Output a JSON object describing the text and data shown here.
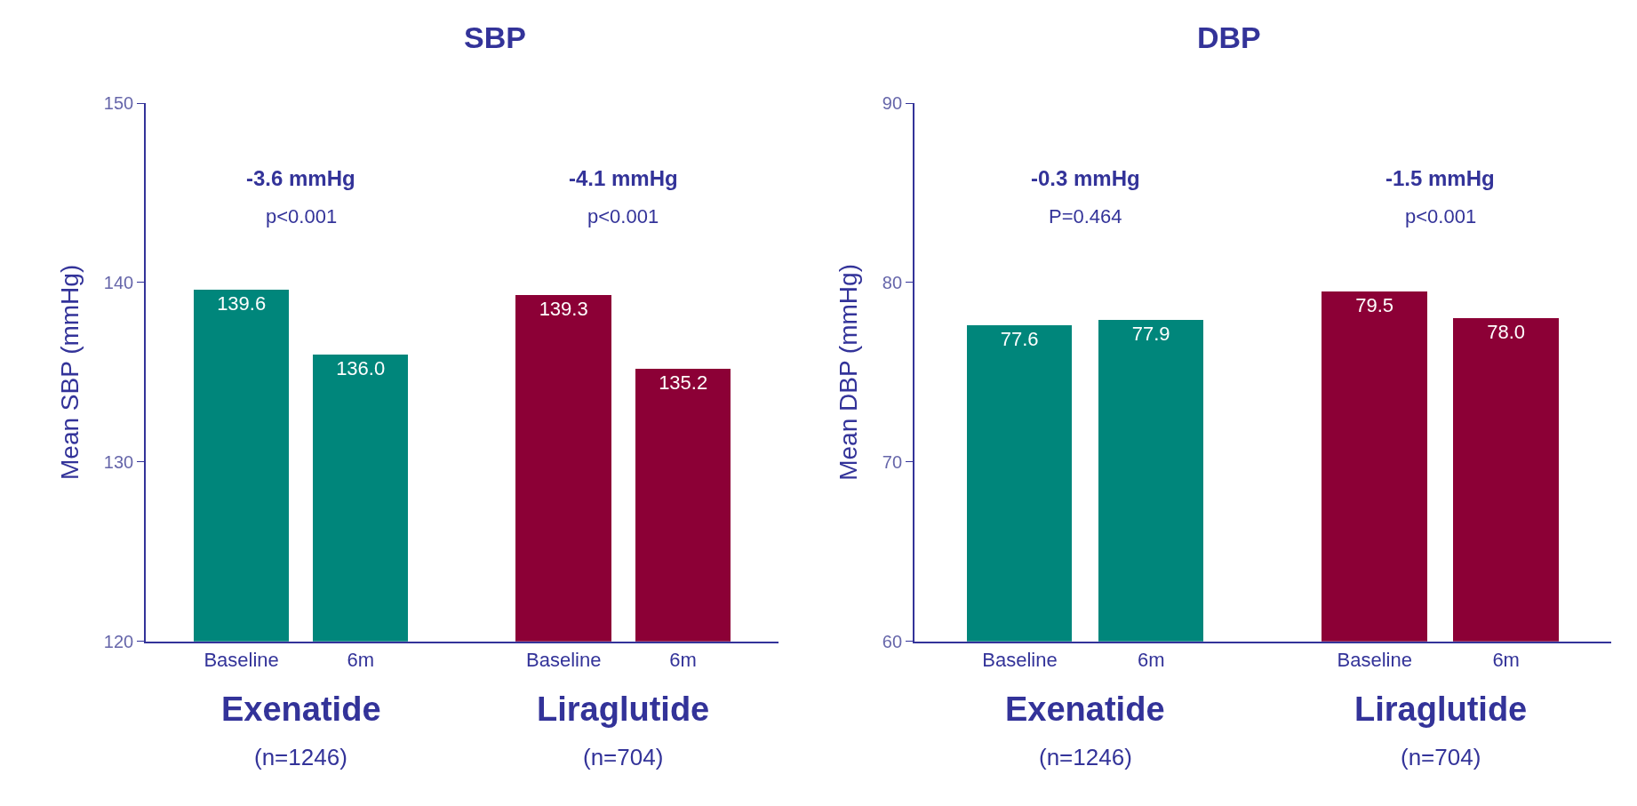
{
  "chart_data": [
    {
      "type": "bar",
      "title": "SBP",
      "ylabel": "Mean SBP (mmHg)",
      "categories": [
        "Baseline",
        "6m",
        "Baseline",
        "6m"
      ],
      "values": [
        139.6,
        136.0,
        139.3,
        135.2
      ],
      "value_labels": [
        "139.6",
        "136.0",
        "139.3",
        "135.2"
      ],
      "colors": [
        "#00867b",
        "#00867b",
        "#8c0036",
        "#8c0036"
      ],
      "ylim": [
        120,
        150
      ],
      "yticks": [
        120,
        130,
        140,
        150
      ],
      "annotations": [
        "-3.6 mmHg",
        "p<0.001",
        "-4.1 mmHg",
        "p<0.001",
        "Exenatide",
        "(n=1246)",
        "Liraglutide",
        "(n=704)"
      ]
    },
    {
      "type": "bar",
      "title": "DBP",
      "ylabel": "Mean DBP (mmHg)",
      "categories": [
        "Baseline",
        "6m",
        "Baseline",
        "6m"
      ],
      "values": [
        77.6,
        77.9,
        79.5,
        78.0
      ],
      "value_labels": [
        "77.6",
        "77.9",
        "79.5",
        "78.0"
      ],
      "colors": [
        "#00867b",
        "#00867b",
        "#8c0036",
        "#8c0036"
      ],
      "ylim": [
        60,
        90
      ],
      "yticks": [
        60,
        70,
        80,
        90
      ],
      "annotations": [
        "-0.3 mmHg",
        "P=0.464",
        "-1.5 mmHg",
        "p<0.001",
        "Exenatide",
        "(n=1246)",
        "Liraglutide",
        "(n=704)"
      ]
    }
  ]
}
